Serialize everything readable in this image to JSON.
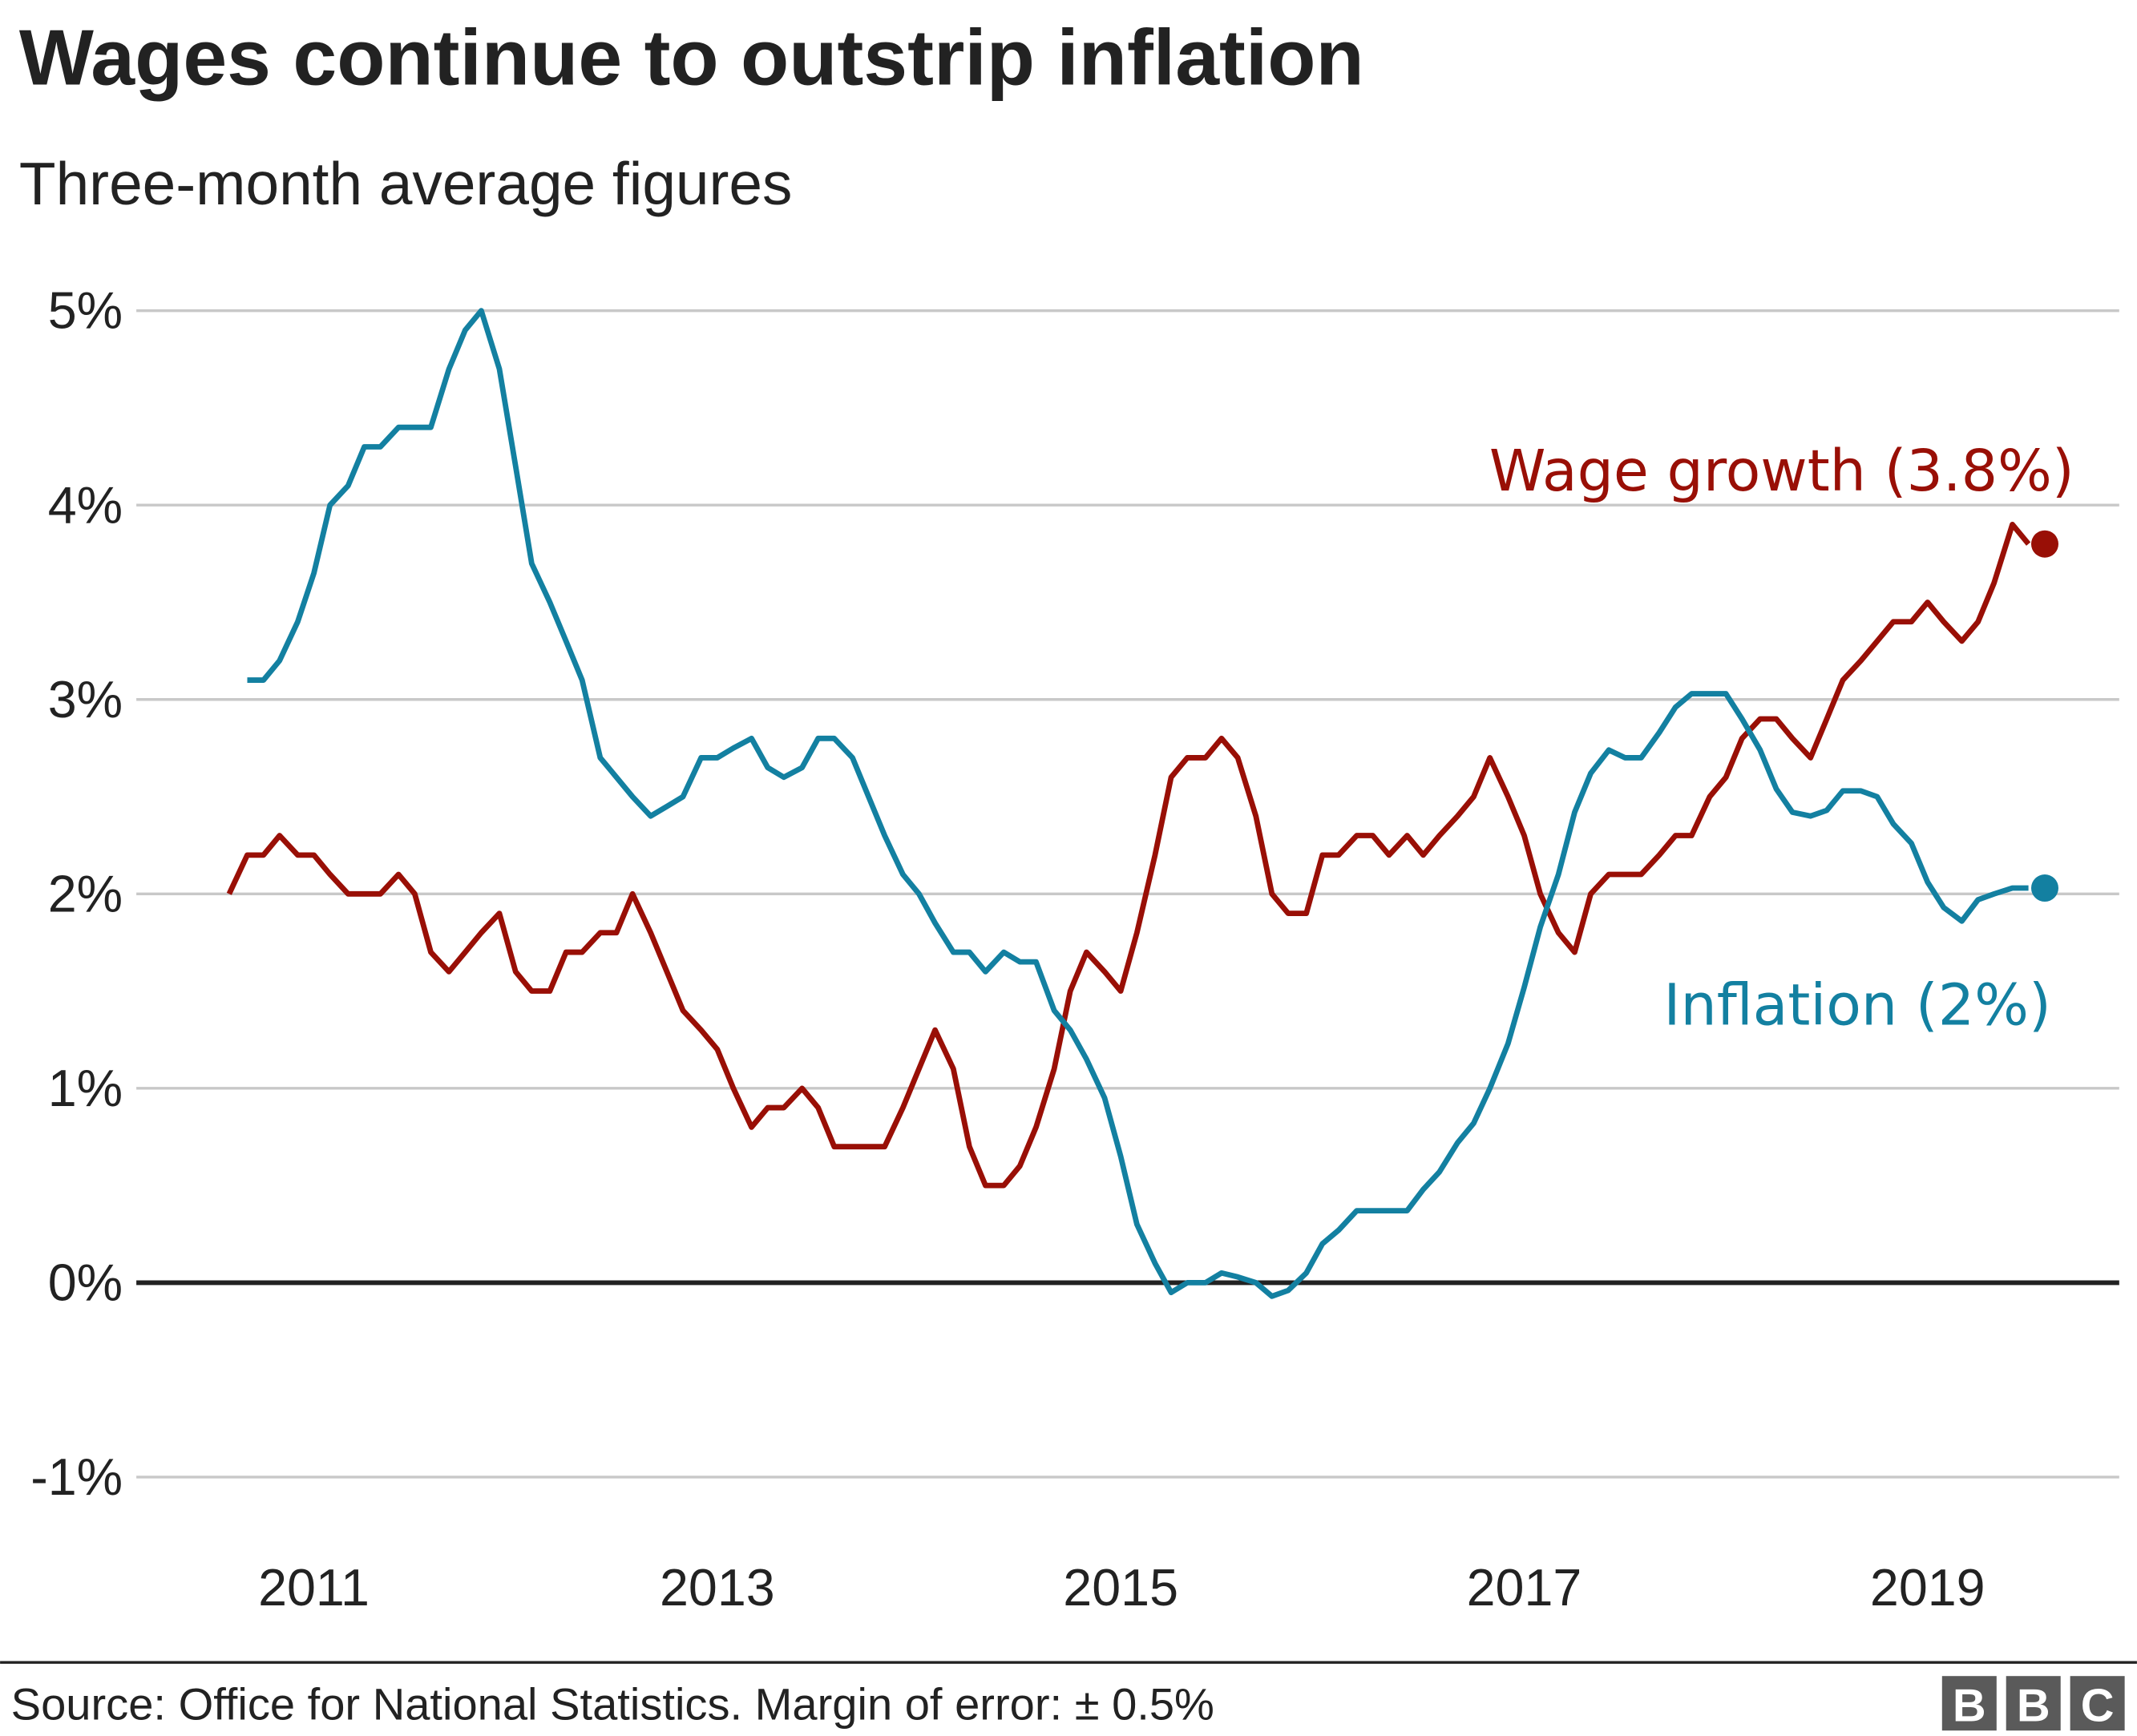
{
  "chart_data": {
    "type": "line",
    "title": "Wages continue to outstrip inflation",
    "subtitle": "Three-month average figures",
    "source": "Source: Office for National Statistics. Margin of error: ± 0.5%",
    "logo": [
      "B",
      "B",
      "C"
    ],
    "x": [
      2010.58,
      2010.67,
      2010.75,
      2010.83,
      2010.92,
      2011.0,
      2011.08,
      2011.17,
      2011.25,
      2011.33,
      2011.42,
      2011.5,
      2011.58,
      2011.67,
      2011.75,
      2011.83,
      2011.92,
      2012.0,
      2012.08,
      2012.17,
      2012.25,
      2012.33,
      2012.42,
      2012.5,
      2012.58,
      2012.67,
      2012.75,
      2012.83,
      2012.92,
      2013.0,
      2013.08,
      2013.17,
      2013.25,
      2013.33,
      2013.42,
      2013.5,
      2013.58,
      2013.67,
      2013.75,
      2013.83,
      2013.92,
      2014.0,
      2014.08,
      2014.17,
      2014.25,
      2014.33,
      2014.42,
      2014.5,
      2014.58,
      2014.67,
      2014.75,
      2014.83,
      2014.92,
      2015.0,
      2015.08,
      2015.17,
      2015.25,
      2015.33,
      2015.42,
      2015.5,
      2015.58,
      2015.67,
      2015.75,
      2015.83,
      2015.92,
      2016.0,
      2016.08,
      2016.17,
      2016.25,
      2016.33,
      2016.42,
      2016.5,
      2016.58,
      2016.67,
      2016.75,
      2016.83,
      2016.92,
      2017.0,
      2017.08,
      2017.17,
      2017.25,
      2017.33,
      2017.42,
      2017.5,
      2017.58,
      2017.67,
      2017.75,
      2017.83,
      2017.92,
      2018.0,
      2018.08,
      2018.17,
      2018.25,
      2018.33,
      2018.42,
      2018.5,
      2018.58,
      2018.67,
      2018.75,
      2018.83,
      2018.92,
      2019.0,
      2019.08,
      2019.17,
      2019.25,
      2019.33,
      2019.42,
      2019.5
    ],
    "series": [
      {
        "name": "Wage growth (3.8%)",
        "color": "#990f06",
        "values": [
          2.0,
          2.2,
          2.2,
          2.3,
          2.2,
          2.2,
          2.1,
          2.0,
          2.0,
          2.0,
          2.1,
          2.0,
          1.7,
          1.6,
          1.7,
          1.8,
          1.9,
          1.6,
          1.5,
          1.5,
          1.7,
          1.7,
          1.8,
          1.8,
          2.0,
          1.8,
          1.6,
          1.4,
          1.3,
          1.2,
          1.0,
          0.8,
          0.9,
          0.9,
          1.0,
          0.9,
          0.7,
          0.7,
          0.7,
          0.7,
          0.9,
          1.1,
          1.3,
          1.1,
          0.7,
          0.5,
          0.5,
          0.6,
          0.8,
          1.1,
          1.5,
          1.7,
          1.6,
          1.5,
          1.8,
          2.2,
          2.6,
          2.7,
          2.7,
          2.8,
          2.7,
          2.4,
          2.0,
          1.9,
          1.9,
          2.2,
          2.2,
          2.3,
          2.3,
          2.2,
          2.3,
          2.2,
          2.3,
          2.4,
          2.5,
          2.7,
          2.5,
          2.3,
          2.0,
          1.8,
          1.7,
          2.0,
          2.1,
          2.1,
          2.1,
          2.2,
          2.3,
          2.3,
          2.5,
          2.6,
          2.8,
          2.9,
          2.9,
          2.8,
          2.7,
          2.9,
          3.1,
          3.2,
          3.3,
          3.4,
          3.4,
          3.5,
          3.4,
          3.3,
          3.4,
          3.6,
          3.9,
          3.8
        ]
      },
      {
        "name": "Inflation (2%)",
        "color": "#1380a1",
        "values": [
          null,
          3.1,
          3.1,
          3.2,
          3.4,
          3.65,
          4.0,
          4.1,
          4.3,
          4.3,
          4.4,
          4.4,
          4.4,
          4.7,
          4.9,
          5.0,
          4.7,
          4.2,
          3.7,
          3.5,
          3.3,
          3.1,
          2.7,
          2.6,
          2.5,
          2.4,
          2.45,
          2.5,
          2.7,
          2.7,
          2.75,
          2.8,
          2.65,
          2.6,
          2.65,
          2.8,
          2.8,
          2.7,
          2.5,
          2.3,
          2.1,
          2.0,
          1.85,
          1.7,
          1.7,
          1.6,
          1.7,
          1.65,
          1.65,
          1.4,
          1.3,
          1.15,
          0.95,
          0.65,
          0.3,
          0.1,
          -0.05,
          0,
          0,
          0.05,
          0.03,
          0,
          -0.07,
          -0.04,
          0.05,
          0.2,
          0.27,
          0.37,
          0.37,
          0.37,
          0.37,
          0.48,
          0.57,
          0.72,
          0.82,
          1.0,
          1.23,
          1.52,
          1.83,
          2.1,
          2.42,
          2.62,
          2.74,
          2.7,
          2.7,
          2.83,
          2.96,
          3.03,
          3.03,
          3.03,
          2.9,
          2.74,
          2.54,
          2.42,
          2.4,
          2.43,
          2.53,
          2.53,
          2.5,
          2.36,
          2.26,
          2.06,
          1.93,
          1.86,
          1.97,
          2.0,
          2.03,
          2.03
        ]
      }
    ],
    "xlim": [
      2010.12,
      2019.95
    ],
    "xticks": [
      2011,
      2013,
      2015,
      2017,
      2019
    ],
    "ylim": [
      -1,
      5
    ],
    "yticks": [
      {
        "value": -1,
        "label": "-1%"
      },
      {
        "value": 0,
        "label": "0%"
      },
      {
        "value": 1,
        "label": "1%"
      },
      {
        "value": 2,
        "label": "2%"
      },
      {
        "value": 3,
        "label": "3%"
      },
      {
        "value": 4,
        "label": "4%"
      },
      {
        "value": 5,
        "label": "5%"
      }
    ],
    "grid": true
  }
}
